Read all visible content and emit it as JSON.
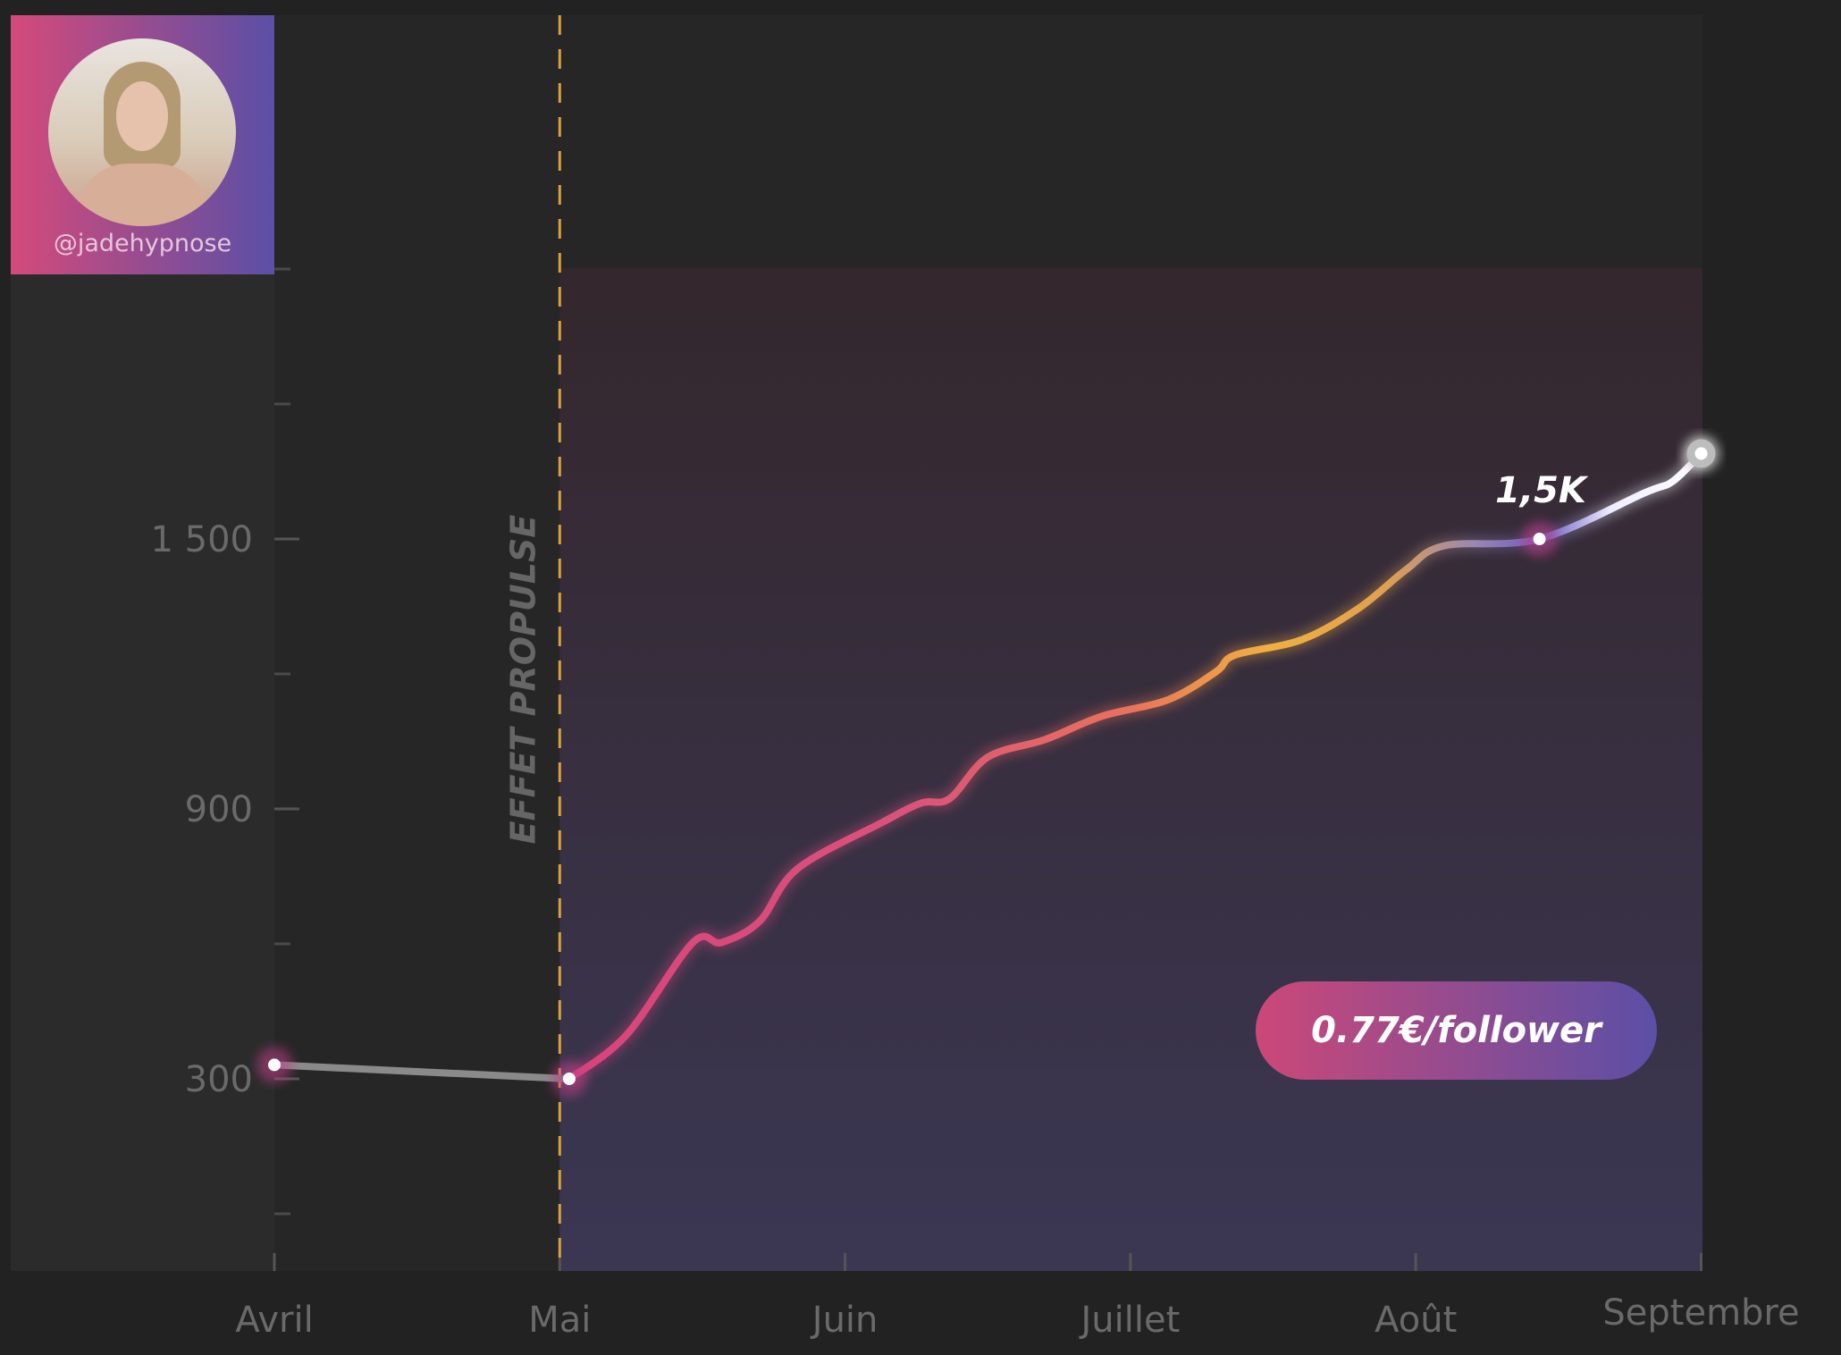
{
  "profile": {
    "handle": "@jadehypnose"
  },
  "annotation": {
    "vertical_label": "EFFET PROPULSE",
    "point_label": "1,5K"
  },
  "badge": {
    "text": "0.77€/follower"
  },
  "colors": {
    "background": "#222222",
    "pink": "#d44a7a",
    "orange": "#f0b040",
    "purple": "#6a5ac0",
    "gray_line": "#8a8a8a"
  },
  "chart_data": {
    "type": "line",
    "title": "",
    "xlabel": "",
    "ylabel": "",
    "x_tick_labels": [
      "Avril",
      "Mai",
      "Juin",
      "Juillet",
      "Août",
      "Septembre"
    ],
    "y_tick_labels": [
      "300",
      "900",
      "1 500"
    ],
    "y_ticks": [
      300,
      900,
      1500
    ],
    "y_minor_ticks": [
      0,
      600,
      1200,
      1800,
      2100
    ],
    "ylim": [
      -140,
      2660
    ],
    "grid": false,
    "marker_line_month": "Mai",
    "series": [
      {
        "points": [
          [
            "04-01",
            331
          ],
          [
            "05-02",
            300
          ],
          [
            "05-08",
            397
          ],
          [
            "05-15",
            603
          ],
          [
            "05-18",
            603
          ],
          [
            "05-22",
            650
          ],
          [
            "05-26",
            767
          ],
          [
            "06-05",
            871
          ],
          [
            "06-09",
            913
          ],
          [
            "06-12",
            923
          ],
          [
            "06-16",
            1015
          ],
          [
            "06-22",
            1054
          ],
          [
            "06-28",
            1106
          ],
          [
            "07-05",
            1143
          ],
          [
            "07-10",
            1205
          ],
          [
            "07-12",
            1242
          ],
          [
            "07-19",
            1276
          ],
          [
            "07-25",
            1346
          ],
          [
            "07-30",
            1432
          ],
          [
            "08-04",
            1485
          ],
          [
            "08-14",
            1500
          ],
          [
            "08-25",
            1602
          ],
          [
            "08-28",
            1628
          ],
          [
            "09-01",
            1690
          ]
        ]
      }
    ],
    "highlighted_points": [
      "04-01",
      "05-02",
      "08-14",
      "09-01"
    ]
  }
}
